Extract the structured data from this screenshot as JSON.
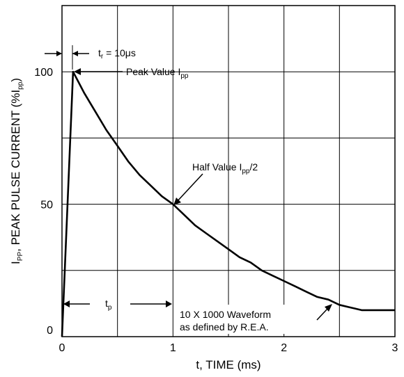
{
  "chart_data": {
    "type": "line",
    "xlabel": "t, TIME (ms)",
    "ylabel": {
      "main": "I",
      "main_sub": "PP",
      "rest": ", PEAK PULSE CURRENT (%I",
      "rest_sub": "pp",
      "close": ")"
    },
    "xlim": [
      0,
      3
    ],
    "ylim": [
      0,
      125
    ],
    "grid": true,
    "x_ticks": [
      {
        "value": 0,
        "label": "0"
      },
      {
        "value": 1,
        "label": "1"
      },
      {
        "value": 2,
        "label": "2"
      },
      {
        "value": 3,
        "label": "3"
      }
    ],
    "y_ticks": [
      {
        "value": 0,
        "label": "0"
      },
      {
        "value": 50,
        "label": "50"
      },
      {
        "value": 100,
        "label": "100"
      }
    ],
    "x_grid": [
      0.5,
      1,
      1.5,
      2,
      2.5
    ],
    "y_grid": [
      25,
      50,
      75,
      100
    ],
    "series": [
      {
        "x": [
          0,
          0.1,
          0.15,
          0.2,
          0.3,
          0.4,
          0.5,
          0.6,
          0.7,
          0.8,
          0.9,
          1.0,
          1.1,
          1.2,
          1.3,
          1.4,
          1.5,
          1.6,
          1.7,
          1.8,
          1.9,
          2.0,
          2.1,
          2.2,
          2.3,
          2.4,
          2.5,
          2.6,
          2.7,
          2.8,
          2.9,
          3.0
        ],
        "y": [
          0,
          100,
          96,
          92,
          85,
          78,
          72,
          66,
          61,
          57,
          53,
          50,
          46,
          42,
          39,
          36,
          33,
          30,
          28,
          25,
          23,
          21,
          19,
          17,
          15,
          14,
          12,
          11,
          10,
          10,
          10,
          10
        ]
      }
    ],
    "annotations": {
      "tr": {
        "label": "t",
        "sub": "r",
        "suffix": " = 10",
        "mu": "μ",
        "unit": "s"
      },
      "peak": {
        "label": "Peak Value I",
        "sub": "pp"
      },
      "half": {
        "label": "Half Value I",
        "sub": "pp",
        "suffix": "/2"
      },
      "tp": {
        "label": "t",
        "sub": "p"
      },
      "waveform": {
        "line1": "10 X 1000 Waveform",
        "line2": "as defined by R.E.A."
      }
    }
  }
}
